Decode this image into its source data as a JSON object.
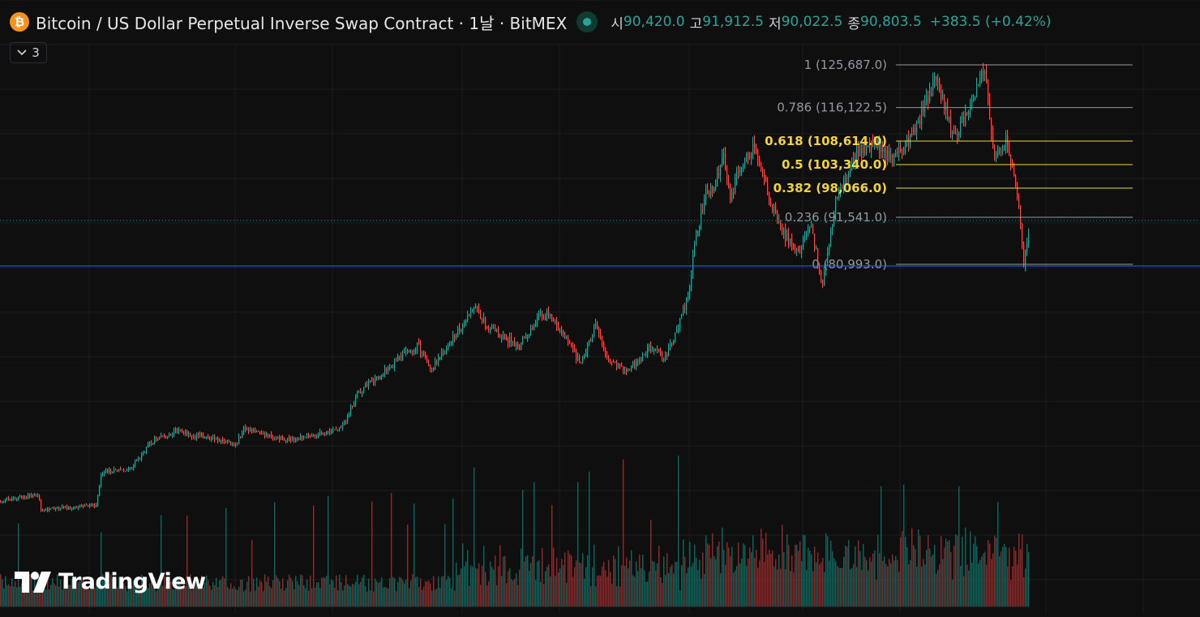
{
  "header": {
    "coin_glyph": "₿",
    "title": "Bitcoin / US Dollar Perpetual Inverse Swap Contract · 1날 · BitMEX",
    "open_label": "시",
    "open": "90,420.0",
    "high_label": "고",
    "high": "91,912.5",
    "low_label": "저",
    "low": "90,022.5",
    "close_label": "종",
    "close": "90,803.5",
    "change": "+383.5 (+0.42%)"
  },
  "indicator_toggle": {
    "icon": "chevron-down-icon",
    "count": "3"
  },
  "watermark": {
    "text": "TradingView",
    "icon": "tradingview-logo-icon"
  },
  "colors": {
    "background": "#0f0f0f",
    "up": "#26a69a",
    "down": "#ef5350",
    "fib_gray": "#9598a1",
    "fib_yellow": "#f2d33a",
    "blue_line": "#2962ff"
  },
  "chart_data": {
    "type": "candlestick",
    "title": "Bitcoin / US Dollar Perpetual Inverse Swap Contract",
    "interval": "1 day",
    "exchange": "BitMEX",
    "series": [
      {
        "name": "price",
        "values": [
          [
            0,
            28000
          ],
          [
            47,
            29500
          ],
          [
            50,
            26000
          ],
          [
            118,
            27200
          ],
          [
            125,
            34500
          ],
          [
            160,
            35000
          ],
          [
            185,
            41000
          ],
          [
            215,
            43500
          ],
          [
            260,
            42000
          ],
          [
            290,
            40500
          ],
          [
            300,
            44000
          ],
          [
            355,
            41500
          ],
          [
            420,
            44000
          ],
          [
            440,
            52000
          ],
          [
            480,
            58000
          ],
          [
            515,
            63000
          ],
          [
            530,
            57000
          ],
          [
            560,
            65000
          ],
          [
            585,
            71500
          ],
          [
            600,
            67000
          ],
          [
            640,
            62500
          ],
          [
            660,
            68500
          ],
          [
            675,
            70000
          ],
          [
            700,
            64000
          ],
          [
            715,
            58500
          ],
          [
            735,
            67500
          ],
          [
            750,
            59000
          ],
          [
            775,
            57500
          ],
          [
            800,
            62500
          ],
          [
            820,
            60000
          ],
          [
            840,
            69000
          ],
          [
            850,
            76000
          ],
          [
            858,
            88000
          ],
          [
            870,
            97000
          ],
          [
            880,
            98000
          ],
          [
            892,
            106500
          ],
          [
            900,
            95000
          ],
          [
            910,
            102000
          ],
          [
            930,
            108000
          ],
          [
            948,
            96000
          ],
          [
            965,
            88000
          ],
          [
            985,
            84000
          ],
          [
            1000,
            90000
          ],
          [
            1013,
            76000
          ],
          [
            1030,
            95000
          ],
          [
            1055,
            106000
          ],
          [
            1080,
            108000
          ],
          [
            1100,
            104000
          ],
          [
            1125,
            110000
          ],
          [
            1155,
            123000
          ],
          [
            1175,
            109000
          ],
          [
            1195,
            116000
          ],
          [
            1213,
            125687
          ],
          [
            1225,
            105000
          ],
          [
            1240,
            109000
          ],
          [
            1255,
            95000
          ],
          [
            1262,
            80993
          ],
          [
            1270,
            90803.5
          ]
        ]
      },
      {
        "name": "volume",
        "values": "relative daily volume bars along bottom"
      }
    ],
    "fibonacci": [
      {
        "level": "1",
        "price": "125,687.0"
      },
      {
        "level": "0.786",
        "price": "116,122.5"
      },
      {
        "level": "0.618",
        "price": "108,614.0"
      },
      {
        "level": "0.5",
        "price": "103,340.0"
      },
      {
        "level": "0.382",
        "price": "98,066.0"
      },
      {
        "level": "0.236",
        "price": "91,541.0"
      },
      {
        "level": "0",
        "price": "80,993.0"
      }
    ],
    "horizontal_line_price": 80993,
    "last_price_dotted": 90803.5,
    "grid": true
  }
}
